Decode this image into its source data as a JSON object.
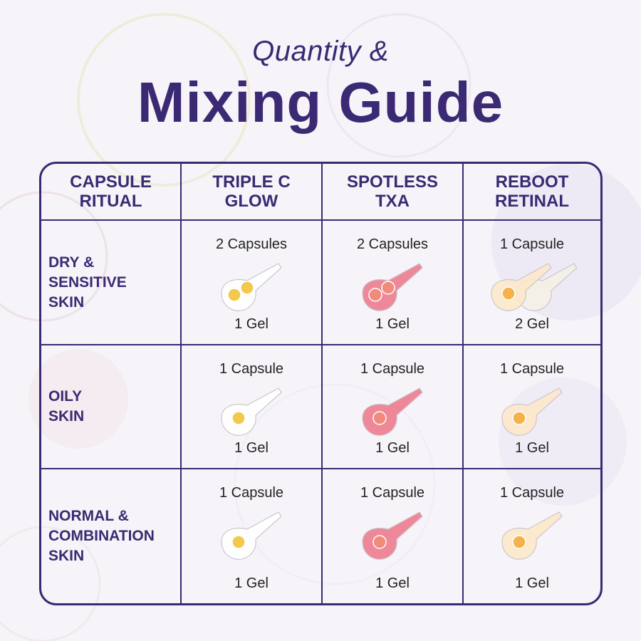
{
  "title": {
    "line1": "Quantity &",
    "line2": "Mixing Guide"
  },
  "colors": {
    "brand": "#3b2a73",
    "triple_c_capsule": "#f2c94c",
    "spotless_capsule": "#f08a7a",
    "spotless_gel": "#e8304a",
    "reboot_capsule": "#f5b24a"
  },
  "table": {
    "corner": "CAPSULE\nRITUAL",
    "columns": [
      "TRIPLE C\nGLOW",
      "SPOTLESS\nTXA",
      "REBOOT\nRETINAL"
    ],
    "rows": [
      {
        "label": "DRY &\nSENSITIVE\nSKIN",
        "cells": [
          {
            "capsules": "2 Capsules",
            "gel": "1 Gel"
          },
          {
            "capsules": "2 Capsules",
            "gel": "1 Gel"
          },
          {
            "capsules": "1 Capsule",
            "gel": "2 Gel"
          }
        ]
      },
      {
        "label": "OILY\nSKIN",
        "cells": [
          {
            "capsules": "1 Capsule",
            "gel": "1 Gel"
          },
          {
            "capsules": "1 Capsule",
            "gel": "1 Gel"
          },
          {
            "capsules": "1 Capsule",
            "gel": "1 Gel"
          }
        ]
      },
      {
        "label": "NORMAL &\nCOMBINATION\nSKIN",
        "cells": [
          {
            "capsules": "1 Capsule",
            "gel": "1 Gel"
          },
          {
            "capsules": "1 Capsule",
            "gel": "1 Gel"
          },
          {
            "capsules": "1 Capsule",
            "gel": "1 Gel"
          }
        ]
      }
    ]
  }
}
